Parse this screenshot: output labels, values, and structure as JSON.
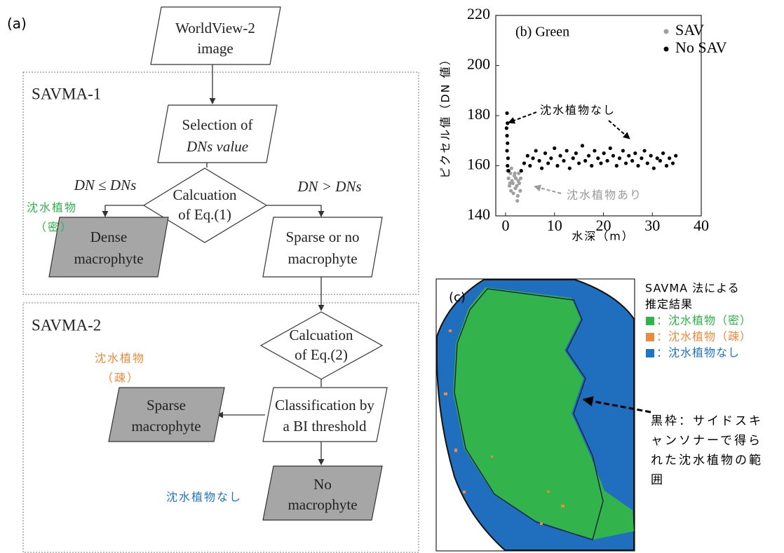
{
  "figure_a": {
    "label": "(a)",
    "groups": [
      {
        "title": "SAVMA-1"
      },
      {
        "title": "SAVMA-2"
      }
    ],
    "nodes": [
      {
        "lines": [
          "WorldView-2",
          "image"
        ]
      },
      {
        "lines": [
          "Selection of",
          "DNs value"
        ]
      },
      {
        "lines": [
          "Calcuation",
          "of Eq.(1)"
        ]
      },
      {
        "lines": [
          "Dense",
          "macrophyte"
        ]
      },
      {
        "lines": [
          "Sparse or no",
          "macrophyte"
        ]
      },
      {
        "lines": [
          "Calcuation",
          "of Eq.(2)"
        ]
      },
      {
        "lines": [
          "Classification by",
          "a BI threshold"
        ]
      },
      {
        "lines": [
          "Sparse",
          "macrophyte"
        ]
      },
      {
        "lines": [
          "No",
          "macrophyte"
        ]
      }
    ],
    "edge_labels": [
      "DN ≤ DNs",
      "DN > DNs"
    ],
    "annotations": [
      {
        "lines": [
          "沈水植物",
          "（密）"
        ]
      },
      {
        "lines": [
          "沈水植物",
          "（疎）"
        ]
      },
      {
        "lines": [
          "沈水植物なし"
        ]
      }
    ]
  },
  "chart_data": {
    "type": "scatter",
    "panel_label": "(b) Green",
    "x_label": "水深（m）",
    "y_label": "ピクセル値（DN 値）",
    "xlim": [
      -2,
      40
    ],
    "xticks": [
      0,
      10,
      20,
      30,
      40
    ],
    "ylim": [
      140,
      220
    ],
    "yticks": [
      140,
      160,
      180,
      200,
      220
    ],
    "series": [
      {
        "name": "SAV",
        "color": "#a0a0a0",
        "x": [
          0.4,
          0.6,
          0.8,
          1.0,
          1.1,
          1.3,
          1.5,
          1.6,
          1.8,
          2.0,
          2.1,
          2.3,
          2.5,
          2.6,
          2.8,
          3.0,
          1.2,
          1.9,
          2.4,
          0.9,
          2.7,
          3.1
        ],
        "y": [
          158,
          155,
          152,
          157,
          150,
          154,
          153,
          149,
          156,
          151,
          155,
          152,
          148,
          154,
          153,
          150,
          159,
          157,
          146,
          153,
          157,
          155
        ]
      },
      {
        "name": "No SAV",
        "color": "#000000",
        "x": [
          0.3,
          0.4,
          0.2,
          0.3,
          0.4,
          0.3,
          0.5,
          0.4,
          0.6,
          3.2,
          3.8,
          4.5,
          5.0,
          5.6,
          6.2,
          6.9,
          7.4,
          8.1,
          8.7,
          9.3,
          10.0,
          10.6,
          11.2,
          11.9,
          12.5,
          13.1,
          13.8,
          14.4,
          15.0,
          15.7,
          16.3,
          17.0,
          17.6,
          18.2,
          18.9,
          19.5,
          20.1,
          20.8,
          21.4,
          22.0,
          22.7,
          23.3,
          24.0,
          24.6,
          25.2,
          25.9,
          26.5,
          27.1,
          27.8,
          28.4,
          29.0,
          29.7,
          30.3,
          31.0,
          31.6,
          32.2,
          32.9,
          33.5,
          34.2,
          34.8
        ],
        "y": [
          181,
          177,
          175,
          172,
          169,
          166,
          163,
          160,
          158,
          158,
          161,
          164,
          160,
          163,
          166,
          162,
          159,
          165,
          161,
          163,
          167,
          160,
          164,
          162,
          166,
          159,
          163,
          165,
          161,
          168,
          162,
          164,
          160,
          166,
          163,
          161,
          165,
          162,
          167,
          164,
          160,
          163,
          166,
          161,
          164,
          162,
          165,
          160,
          163,
          166,
          161,
          164,
          159,
          163,
          162,
          165,
          160,
          163,
          161,
          164
        ]
      }
    ],
    "annotations": [
      {
        "text": "沈水植物なし"
      },
      {
        "text": "沈水植物あり"
      }
    ]
  },
  "figure_c": {
    "label": "(c)",
    "legend_title": [
      "SAVMA 法による",
      "推定結果"
    ],
    "legend": [
      {
        "text": "：沈水植物（密）",
        "color": "#2fb34a"
      },
      {
        "text": "：沈水植物（疎）",
        "color": "#ee8a3c"
      },
      {
        "text": "：沈水植物なし",
        "color": "#1f74c4"
      }
    ],
    "note_lines": [
      "黒枠：サイドスキ",
      "ャンソナーで得ら",
      "れた沈水植物の範",
      "囲"
    ]
  }
}
